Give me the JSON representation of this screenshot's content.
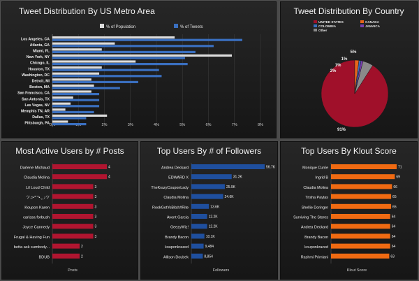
{
  "chart_data": [
    {
      "id": "metro",
      "type": "bar",
      "title": "Tweet Distribution By US Metro Area",
      "categories": [
        "Los Angeles, CA",
        "Atlanta, GA",
        "Miami, FL",
        "New York, NY",
        "Chicago, IL",
        "Houston, TX",
        "Washington, DC",
        "Detroit, MI",
        "Boston, MA",
        "San Francisco, CA",
        "San Antonio, TX",
        "Las Vegas, NV",
        "Memphis TN, AR",
        "Dallas, TX",
        "Pittsburgh, PA"
      ],
      "series": [
        {
          "name": "% of Population",
          "color": "#dcdcdc",
          "values": [
            4.7,
            2.4,
            1.9,
            6.9,
            3.2,
            1.9,
            1.8,
            1.5,
            1.6,
            1.5,
            0.8,
            0.7,
            0.5,
            2.1,
            0.6
          ]
        },
        {
          "name": "% of Tweets",
          "color": "#3a6fbf",
          "values": [
            7.3,
            6.2,
            5.5,
            5.1,
            5.2,
            4.1,
            4.2,
            3.3,
            2.6,
            1.8,
            1.8,
            1.8,
            1.6,
            1.3,
            1.3
          ]
        }
      ],
      "xticks": [
        "0%",
        "1%",
        "2%",
        "3%",
        "4%",
        "5%",
        "6%",
        "7%",
        "8%"
      ],
      "xlim": [
        0,
        8
      ]
    },
    {
      "id": "country",
      "type": "pie",
      "title": "Tweet Distribution By Country",
      "legend": [
        {
          "label": "UNITED STATES",
          "color": "#a0102a"
        },
        {
          "label": "CANADA",
          "color": "#e8641b"
        },
        {
          "label": "COLOMBIA",
          "color": "#3a6fbf"
        },
        {
          "label": "JAMAICA",
          "color": "#7a3fb0"
        },
        {
          "label": "Other",
          "color": "#8a8a8a"
        }
      ],
      "slices": [
        {
          "label": "United States",
          "value": 91,
          "color": "#a0102a",
          "text": "91%"
        },
        {
          "label": "Canada",
          "value": 2,
          "color": "#e8641b",
          "text": "2%"
        },
        {
          "label": "Colombia",
          "value": 1,
          "color": "#3a6fbf",
          "text": "1%"
        },
        {
          "label": "Jamaica",
          "value": 1,
          "color": "#7a3fb0",
          "text": "1%"
        },
        {
          "label": "Other",
          "value": 5,
          "color": "#8a8a8a",
          "text": "5%"
        }
      ]
    },
    {
      "id": "posts",
      "type": "bar",
      "title": "Most Active Users by # Posts",
      "xlabel": "Posts",
      "color": "#b01530",
      "max": 4,
      "categories": [
        "Darlene Michaud",
        "Claudia Molina",
        "Lil Loud Child",
        "ツ♫•*¨*•.¸¸♪ツ",
        "Koupon Karen",
        "carissa forbush",
        "Joyce Cannedy",
        "Frugal & Having Fun",
        "betta ask sumbody...",
        "BDUB"
      ],
      "values": [
        4,
        4,
        3,
        3,
        3,
        3,
        3,
        3,
        2,
        2
      ],
      "labels": [
        "4",
        "4",
        "3",
        "3",
        "3",
        "3",
        "3",
        "3",
        "2",
        "2"
      ]
    },
    {
      "id": "followers",
      "type": "bar",
      "title": "Top Users By # of Followers",
      "xlabel": "Followers",
      "color": "#1f4f9e",
      "max": 56700,
      "categories": [
        "Andrea Deckard",
        "EDWARD X",
        "TheKrazyCouponLady",
        "Claudia Molina",
        "RookGotYoBitch#Rite",
        "Avont Garcia",
        "GeezyWiz!",
        "Brandy Bacon",
        "kouponkrazed",
        "Allison Doubek"
      ],
      "values": [
        56700,
        31200,
        25900,
        24600,
        13600,
        12200,
        12200,
        10100,
        9484,
        8854
      ],
      "labels": [
        "56.7K",
        "31.2K",
        "25.9K",
        "24.6K",
        "13.6K",
        "12.2K",
        "12.2K",
        "10.1K",
        "9,484",
        "8,854"
      ]
    },
    {
      "id": "klout",
      "type": "bar",
      "title": "Top Users By Klout Score",
      "xlabel": "Klout Score",
      "color": "#f06a12",
      "max": 71,
      "categories": [
        "Monique Currie",
        "Ingrid B",
        "Claudia Molina",
        "Trisha Paytas",
        "Shellie Doringer",
        "Surviving The Stores",
        "Andrea Deckard",
        "Brandy Bacon",
        "kouponkrazed",
        "Rashmi Primlani"
      ],
      "values": [
        71,
        69,
        66,
        65,
        65,
        64,
        64,
        64,
        64,
        63
      ],
      "labels": [
        "71",
        "69",
        "66",
        "65",
        "65",
        "64",
        "64",
        "64",
        "64",
        "63"
      ]
    }
  ]
}
